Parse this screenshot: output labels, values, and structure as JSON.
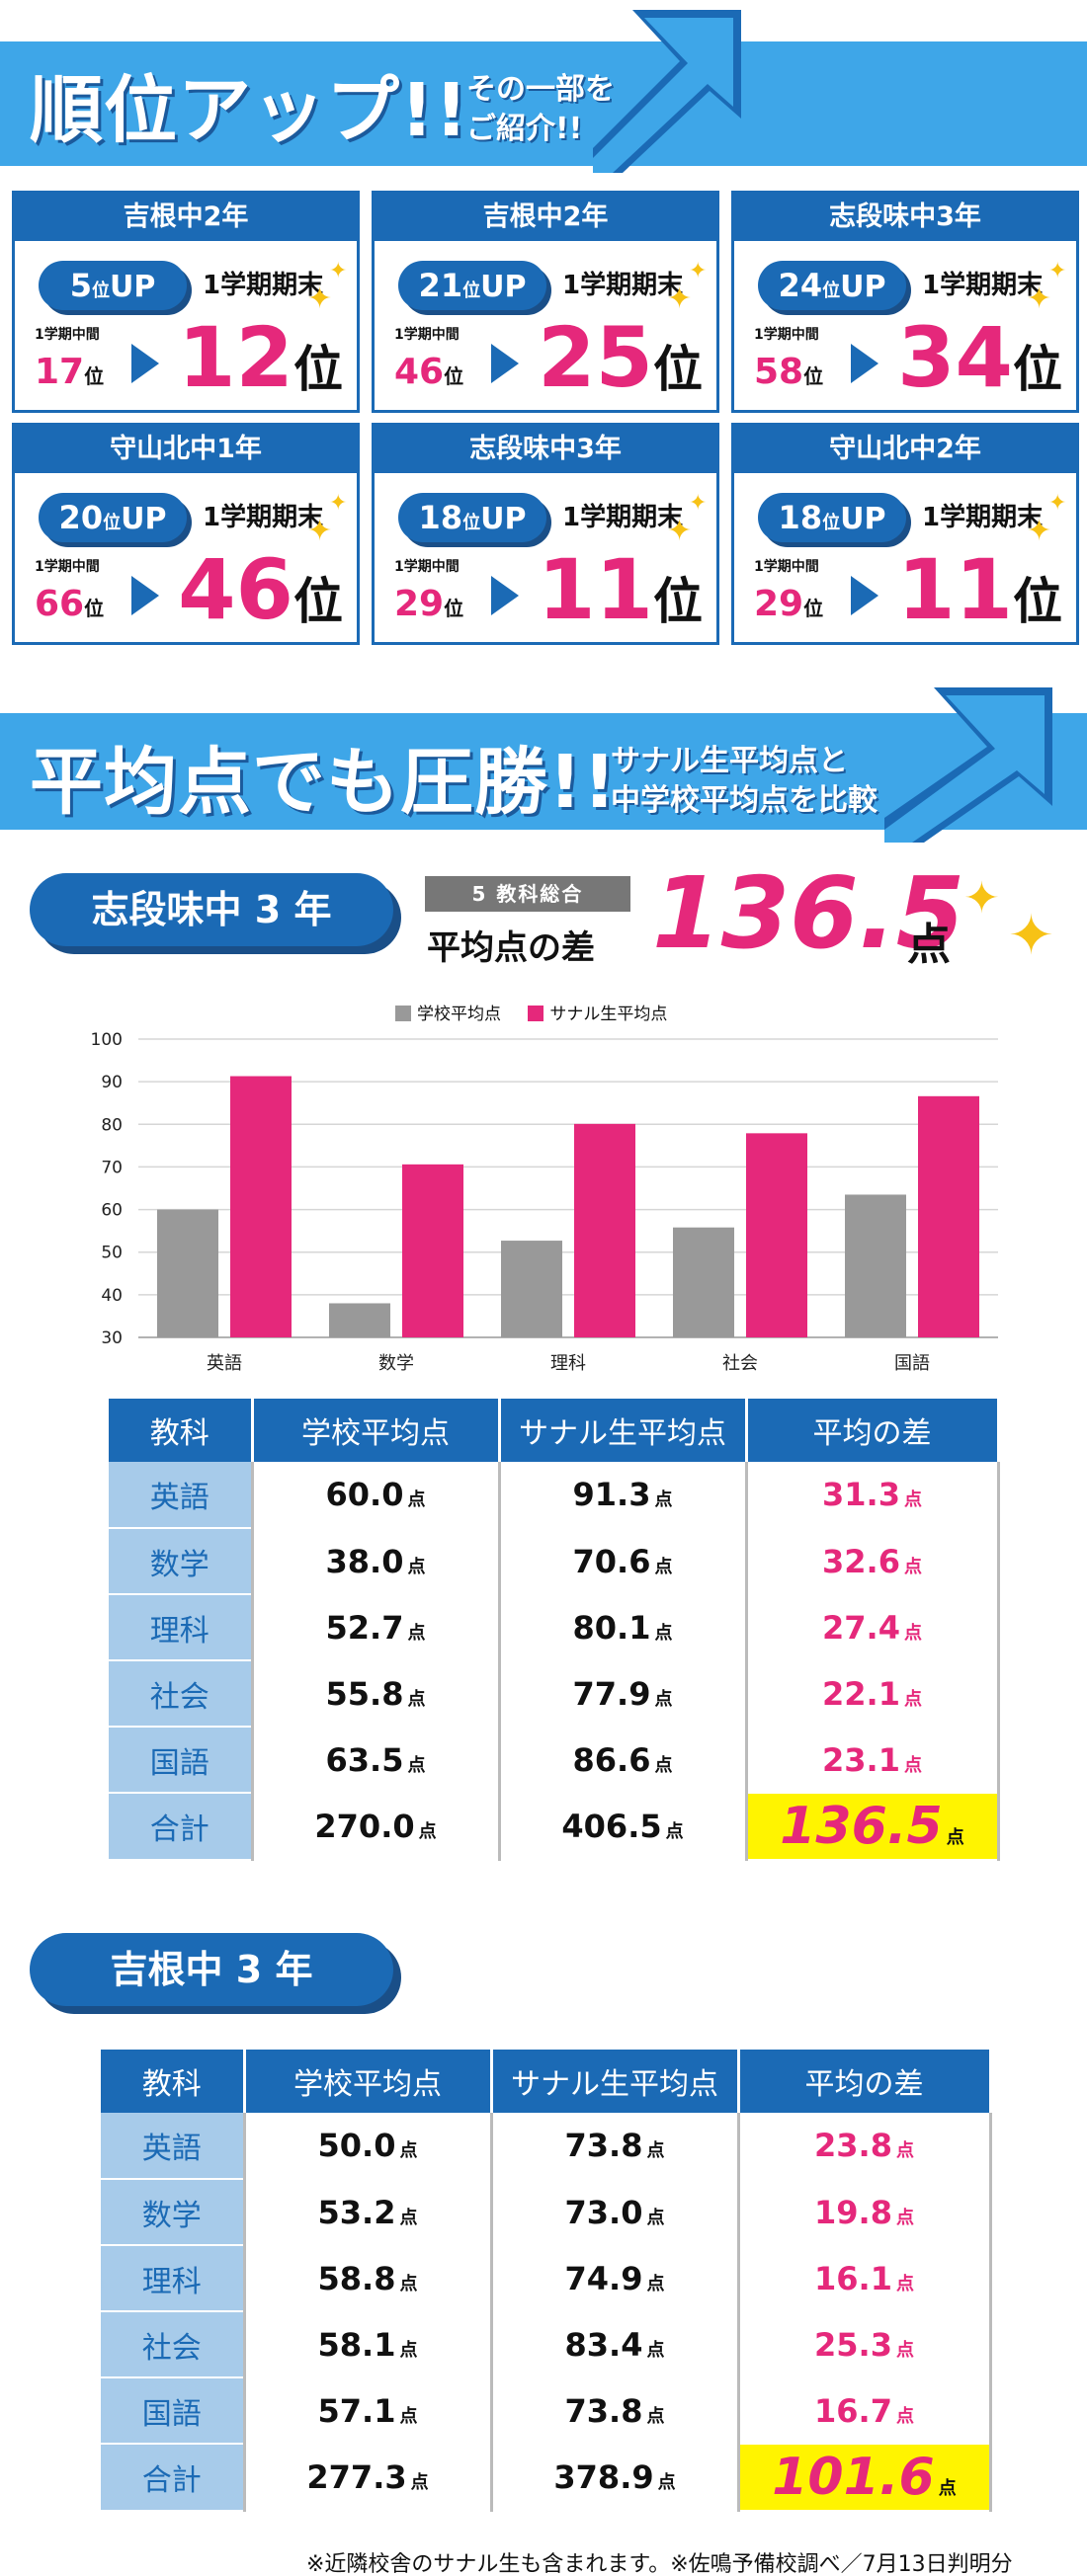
{
  "banner1": {
    "title": "順位アップ!!",
    "subtitle_line1": "その一部を",
    "subtitle_line2": "ご紹介!!"
  },
  "rank_cards": [
    {
      "school": "吉根中2年",
      "up": "5",
      "up_suffix": "位",
      "up_word": "UP",
      "term_label": "1学期期末",
      "mid_label": "1学期中間",
      "mid_rank": "17",
      "final_rank": "12",
      "rank_suffix": "位"
    },
    {
      "school": "吉根中2年",
      "up": "21",
      "up_suffix": "位",
      "up_word": "UP",
      "term_label": "1学期期末",
      "mid_label": "1学期中間",
      "mid_rank": "46",
      "final_rank": "25",
      "rank_suffix": "位"
    },
    {
      "school": "志段味中3年",
      "up": "24",
      "up_suffix": "位",
      "up_word": "UP",
      "term_label": "1学期期末",
      "mid_label": "1学期中間",
      "mid_rank": "58",
      "final_rank": "34",
      "rank_suffix": "位"
    },
    {
      "school": "守山北中1年",
      "up": "20",
      "up_suffix": "位",
      "up_word": "UP",
      "term_label": "1学期期末",
      "mid_label": "1学期中間",
      "mid_rank": "66",
      "final_rank": "46",
      "rank_suffix": "位"
    },
    {
      "school": "志段味中3年",
      "up": "18",
      "up_suffix": "位",
      "up_word": "UP",
      "term_label": "1学期期末",
      "mid_label": "1学期中間",
      "mid_rank": "29",
      "final_rank": "11",
      "rank_suffix": "位"
    },
    {
      "school": "守山北中2年",
      "up": "18",
      "up_suffix": "位",
      "up_word": "UP",
      "term_label": "1学期期末",
      "mid_label": "1学期中間",
      "mid_rank": "29",
      "final_rank": "11",
      "rank_suffix": "位"
    }
  ],
  "banner2": {
    "title": "平均点でも圧勝!!",
    "subtitle_line1": "サナル生平均点と",
    "subtitle_line2": "中学校平均点を比較"
  },
  "section1": {
    "school": "志段味中 3 年",
    "five_subject_label": "5 教科総合",
    "diff_label": "平均点の差",
    "diff_value": "136.5",
    "diff_unit": "点"
  },
  "chart_data": {
    "type": "bar",
    "categories": [
      "英語",
      "数学",
      "理科",
      "社会",
      "国語"
    ],
    "series": [
      {
        "name": "学校平均点",
        "values": [
          60.0,
          38.0,
          52.7,
          55.8,
          63.5
        ],
        "color": "#999999"
      },
      {
        "name": "サナル生平均点",
        "values": [
          91.3,
          70.6,
          80.1,
          77.9,
          86.6
        ],
        "color": "#e5287b"
      }
    ],
    "ylim": [
      30,
      100
    ],
    "yticks": [
      30,
      40,
      50,
      60,
      70,
      80,
      90,
      100
    ],
    "grid": true,
    "legend": "top"
  },
  "table1": {
    "headers": [
      "教科",
      "学校平均点",
      "サナル生平均点",
      "平均の差"
    ],
    "unit": "点",
    "rows": [
      [
        "英語",
        "60.0",
        "91.3",
        "31.3"
      ],
      [
        "数学",
        "38.0",
        "70.6",
        "32.6"
      ],
      [
        "理科",
        "52.7",
        "80.1",
        "27.4"
      ],
      [
        "社会",
        "55.8",
        "77.9",
        "22.1"
      ],
      [
        "国語",
        "63.5",
        "86.6",
        "23.1"
      ]
    ],
    "total": [
      "合計",
      "270.0",
      "406.5",
      "136.5"
    ]
  },
  "section2": {
    "school": "吉根中 3 年"
  },
  "table2": {
    "headers": [
      "教科",
      "学校平均点",
      "サナル生平均点",
      "平均の差"
    ],
    "unit": "点",
    "rows": [
      [
        "英語",
        "50.0",
        "73.8",
        "23.8"
      ],
      [
        "数学",
        "53.2",
        "73.0",
        "19.8"
      ],
      [
        "理科",
        "58.8",
        "74.9",
        "16.1"
      ],
      [
        "社会",
        "58.1",
        "83.4",
        "25.3"
      ],
      [
        "国語",
        "57.1",
        "73.8",
        "16.7"
      ]
    ],
    "total": [
      "合計",
      "277.3",
      "378.9",
      "101.6"
    ]
  },
  "footnote": "※近隣校舎のサナル生も含まれます。※佐鳴予備校調べ／7月13日判明分",
  "colors": {
    "brand_blue": "#1b6ab5",
    "banner_blue": "#3ea6e8",
    "accent_pink": "#e5287b",
    "highlight_yellow": "#fff400",
    "school_grey": "#999999"
  }
}
